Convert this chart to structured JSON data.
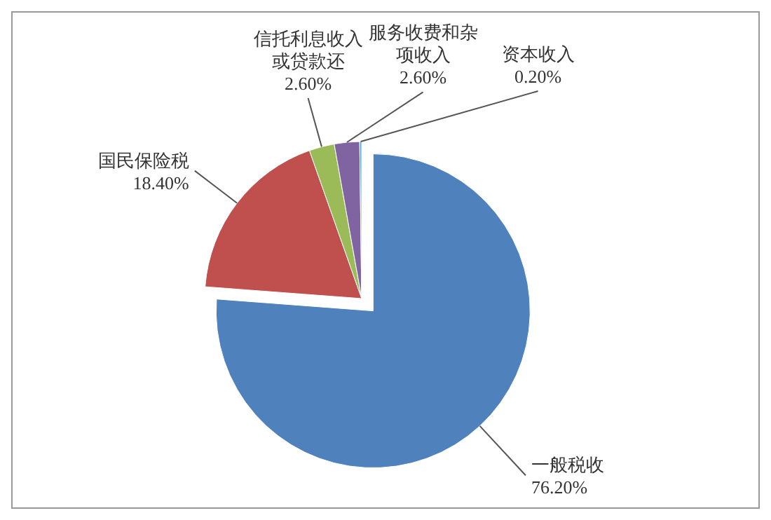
{
  "chart_data": {
    "type": "pie",
    "categories": [
      "一般税收",
      "国民保险税",
      "信托利息收入或贷款还",
      "服务收费和杂项收入",
      "资本收入"
    ],
    "values": [
      76.2,
      18.4,
      2.6,
      2.6,
      0.2
    ],
    "value_labels": [
      "76.20%",
      "18.40%",
      "2.60%",
      "2.60%",
      "0.20%"
    ],
    "colors": [
      "#4f81bd",
      "#c0504d",
      "#9bbb59",
      "#8064a2",
      "#4bacc6"
    ],
    "legend": false
  }
}
